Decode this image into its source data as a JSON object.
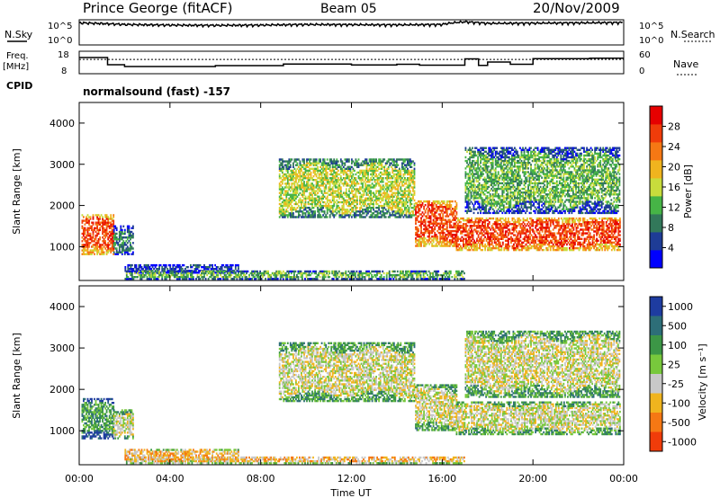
{
  "header": {
    "station": "Prince George (fitACF)",
    "beam": "Beam 05",
    "date": "20/Nov/2009",
    "cpid_label": "CPID",
    "cpid_text": "normalsound (fast) -157"
  },
  "strip_labels": {
    "nsky": "N.Sky",
    "nsky_top": "10^5",
    "nsky_bottom": "10^0",
    "nsearch": "N.Search",
    "nsearch_top": "10^5",
    "nsearch_bottom": "10^0",
    "freq": "Freq.",
    "freq_unit": "[MHz]",
    "freq_top": "18",
    "freq_bottom": "8",
    "nave": "Nave",
    "nave_top": "60",
    "nave_bottom": "0"
  },
  "colors": {
    "power_scale": [
      "#0000ff",
      "#1e3c96",
      "#32785a",
      "#46b446",
      "#c8dc3c",
      "#f0b41e",
      "#f57814",
      "#f03c0a",
      "#e60000"
    ],
    "velocity_scale": [
      "#1e3ca0",
      "#2d6e78",
      "#3c9646",
      "#78c83c",
      "#c8c8c8",
      "#f0b41e",
      "#f57814",
      "#f03c0a",
      "#e60000"
    ]
  },
  "chart_data": [
    {
      "type": "line",
      "name": "strip",
      "ylabel_left": "N.Sky",
      "ylabel_right": "N.Search",
      "x": [
        0,
        2,
        4,
        6,
        8,
        10,
        12,
        14,
        16,
        17,
        18,
        20,
        22,
        24
      ],
      "series": [
        {
          "values": [
            25000,
            12000,
            9000,
            8000,
            9000,
            12000,
            11000,
            10000,
            12000,
            40000,
            20000,
            22000,
            25000,
            30000
          ]
        }
      ]
    },
    {
      "type": "line",
      "name": "frequency",
      "ylabel": "Freq. [MHz]",
      "y2label": "Nave",
      "ylim": [
        8,
        18
      ],
      "y2lim": [
        0,
        60
      ],
      "x": [
        0,
        1.25,
        1.25,
        2.0,
        2.0,
        6.0,
        6.0,
        9.0,
        9.0,
        12.0,
        12.0,
        14.0,
        14.0,
        15.0,
        15.0,
        17.0,
        17.0,
        17.6,
        17.6,
        18.0,
        18.0,
        19.0,
        19.0,
        20.0,
        20.0,
        22.5,
        22.5,
        24.0
      ],
      "series": [
        {
          "values": [
            15.2,
            15.2,
            12.0,
            12.0,
            11.2,
            11.2,
            11.6,
            11.6,
            12.3,
            12.3,
            11.9,
            11.9,
            12.2,
            12.2,
            11.8,
            11.8,
            14.6,
            14.6,
            11.7,
            11.7,
            13.2,
            13.2,
            12.2,
            12.2,
            14.7,
            14.7,
            14.9,
            14.9
          ]
        }
      ],
      "nave": 38
    },
    {
      "type": "heatmap",
      "name": "power",
      "ylabel": "Slant Range [km]",
      "colorbar_label": "Power [dB]",
      "colorbar_ticks": [
        "4",
        "8",
        "12",
        "16",
        "20",
        "24",
        "28"
      ],
      "xlim": [
        0,
        24
      ],
      "ylim": [
        180,
        4500
      ],
      "yticks": [
        "1000",
        "2000",
        "3000",
        "4000"
      ],
      "regions": [
        {
          "t0": 0.1,
          "t1": 1.5,
          "r0": 800,
          "r1": 1750,
          "level": 7
        },
        {
          "t0": 1.5,
          "t1": 2.4,
          "r0": 800,
          "r1": 1500,
          "level": 2
        },
        {
          "t0": 2.0,
          "t1": 7.0,
          "r0": 350,
          "r1": 550,
          "level": 1
        },
        {
          "t0": 8.8,
          "t1": 14.8,
          "r0": 1700,
          "r1": 3100,
          "level": 4
        },
        {
          "t0": 14.8,
          "t1": 16.6,
          "r0": 1000,
          "r1": 2100,
          "level": 7
        },
        {
          "t0": 16.6,
          "t1": 23.8,
          "r0": 900,
          "r1": 1700,
          "level": 7
        },
        {
          "t0": 17.0,
          "t1": 23.8,
          "r0": 1800,
          "r1": 3400,
          "level": 3
        },
        {
          "t0": 2.0,
          "t1": 17.0,
          "r0": 200,
          "r1": 400,
          "level": 3
        }
      ]
    },
    {
      "type": "heatmap",
      "name": "velocity",
      "ylabel": "Slant Range [km]",
      "colorbar_label": "Velocity [m s⁻¹]",
      "colorbar_ticks": [
        "1000",
        "500",
        "100",
        "25",
        "-25",
        "-100",
        "-500",
        "-1000"
      ],
      "xlim": [
        0,
        24
      ],
      "ylim": [
        180,
        4500
      ],
      "yticks": [
        "1000",
        "2000",
        "3000",
        "4000"
      ],
      "xticks": [
        "00:00",
        "04:00",
        "08:00",
        "12:00",
        "16:00",
        "20:00",
        "00:00"
      ],
      "xlabel": "Time UT",
      "regions": [
        {
          "t0": 0.1,
          "t1": 1.5,
          "r0": 800,
          "r1": 1750,
          "level": 2
        },
        {
          "t0": 1.5,
          "t1": 2.4,
          "r0": 800,
          "r1": 1500,
          "level": 4
        },
        {
          "t0": 2.0,
          "t1": 7.0,
          "r0": 250,
          "r1": 550,
          "level": 5
        },
        {
          "t0": 8.8,
          "t1": 14.8,
          "r0": 1700,
          "r1": 3100,
          "level": 4
        },
        {
          "t0": 14.8,
          "t1": 16.6,
          "r0": 1000,
          "r1": 2100,
          "level": 4
        },
        {
          "t0": 16.6,
          "t1": 23.8,
          "r0": 900,
          "r1": 1700,
          "level": 4
        },
        {
          "t0": 17.0,
          "t1": 23.8,
          "r0": 1800,
          "r1": 3400,
          "level": 4
        },
        {
          "t0": 2.0,
          "t1": 17.0,
          "r0": 200,
          "r1": 380,
          "level": 5
        }
      ]
    }
  ]
}
